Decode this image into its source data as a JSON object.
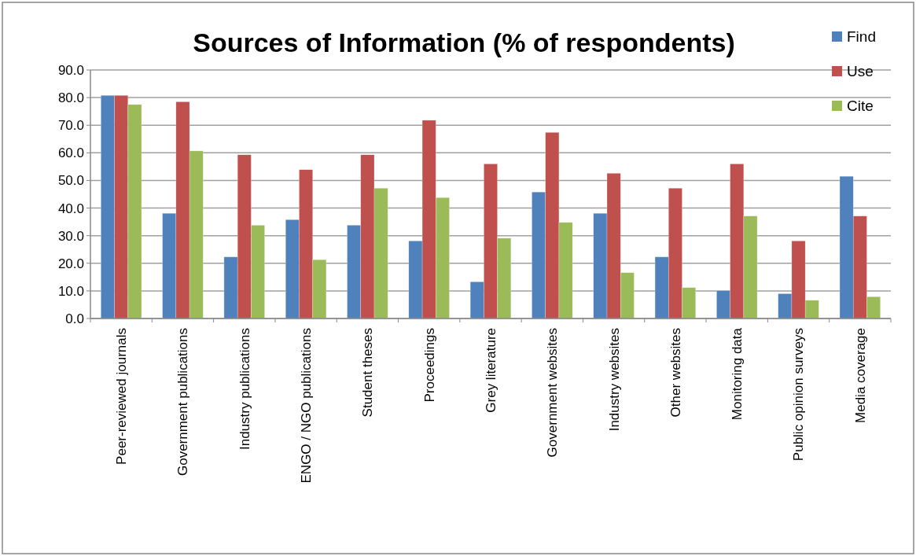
{
  "chart_data": {
    "type": "bar",
    "title": "Sources of Information (% of respondents)",
    "categories": [
      "Peer-reviewed journals",
      "Government publications",
      "Industry publications",
      "ENGO / NGO publications",
      "Student theses",
      "Proceedings",
      "Grey literature",
      "Government websites",
      "Industry websites",
      "Other websites",
      "Monitoring data",
      "Public opinion surveys",
      "Media coverage"
    ],
    "series": [
      {
        "name": "Find",
        "color": "#4f81bd",
        "values": [
          80.8,
          38.1,
          22.3,
          35.8,
          33.8,
          28.1,
          13.3,
          45.8,
          38.1,
          22.3,
          10.1,
          9.0,
          51.5
        ]
      },
      {
        "name": "Use",
        "color": "#c0504d",
        "values": [
          80.8,
          78.5,
          59.3,
          53.9,
          59.3,
          71.8,
          56.0,
          67.4,
          52.6,
          47.2,
          56.0,
          28.1,
          37.1
        ]
      },
      {
        "name": "Cite",
        "color": "#9bbb59",
        "values": [
          77.5,
          60.7,
          33.8,
          21.3,
          47.2,
          43.8,
          29.1,
          34.8,
          16.6,
          11.2,
          37.1,
          6.6,
          7.9
        ]
      }
    ],
    "ylim": [
      0,
      90
    ],
    "yticks": [
      {
        "value": 0,
        "label": "0.0"
      },
      {
        "value": 10,
        "label": "10.0"
      },
      {
        "value": 20,
        "label": "20.0"
      },
      {
        "value": 30,
        "label": "30.0"
      },
      {
        "value": 40,
        "label": "40.0"
      },
      {
        "value": 50,
        "label": "50.0"
      },
      {
        "value": 60,
        "label": "60.0"
      },
      {
        "value": 70,
        "label": "70.0"
      },
      {
        "value": 80,
        "label": "80.0"
      },
      {
        "value": 90,
        "label": "90.0"
      }
    ],
    "grid": "y",
    "legend": "top right"
  }
}
